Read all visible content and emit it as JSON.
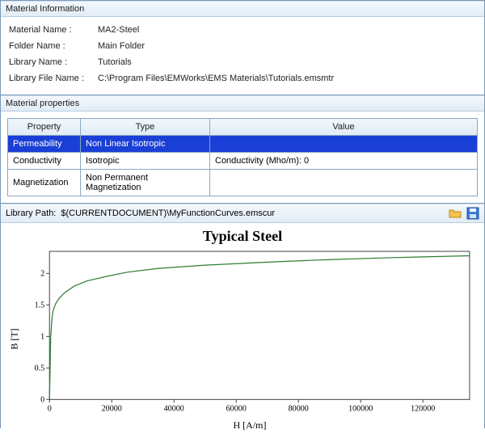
{
  "info_panel": {
    "title": "Material Information",
    "rows": [
      {
        "label": "Material Name :",
        "value": "MA2-Steel"
      },
      {
        "label": "Folder Name :",
        "value": "Main Folder"
      },
      {
        "label": "Library Name :",
        "value": "Tutorials"
      },
      {
        "label": "Library File Name :",
        "value": "C:\\Program Files\\EMWorks\\EMS Materials\\Tutorials.emsmtr"
      }
    ]
  },
  "props_panel": {
    "title": "Material properties",
    "columns": [
      "Property",
      "Type",
      "Value"
    ],
    "rows": [
      {
        "property": "Permeability",
        "type": "Non Linear Isotropic",
        "value": "",
        "selected": true
      },
      {
        "property": "Conductivity",
        "type": "Isotropic",
        "value": "Conductivity (Mho/m):  0",
        "selected": false
      },
      {
        "property": "Magnetization",
        "type": "Non Permanent Magnetization",
        "value": "",
        "selected": false
      }
    ]
  },
  "library_bar": {
    "label": "Library Path:",
    "value": "$(CURRENTDOCUMENT)\\MyFunctionCurves.emscur"
  },
  "chart": {
    "type": "line",
    "title": "Typical Steel",
    "xlabel": "H [A/m]",
    "ylabel": "B [T]",
    "xlim": [
      0,
      135000
    ],
    "ylim": [
      0,
      2.35
    ],
    "xticks": [
      0,
      20000,
      40000,
      60000,
      80000,
      100000,
      120000
    ],
    "yticks": [
      0,
      0.5,
      1,
      1.5,
      2
    ],
    "line_color": "#2e7d32",
    "line_width": 1.2,
    "axis_color": "#444444",
    "tick_fontsize": 10,
    "tick_font": "Times New Roman",
    "background_color": "#ffffff",
    "data": [
      [
        0,
        0
      ],
      [
        400,
        1.0
      ],
      [
        800,
        1.3
      ],
      [
        1200,
        1.42
      ],
      [
        2000,
        1.52
      ],
      [
        3000,
        1.6
      ],
      [
        5000,
        1.7
      ],
      [
        8000,
        1.8
      ],
      [
        12000,
        1.88
      ],
      [
        18000,
        1.95
      ],
      [
        25000,
        2.02
      ],
      [
        35000,
        2.08
      ],
      [
        50000,
        2.13
      ],
      [
        70000,
        2.18
      ],
      [
        90000,
        2.22
      ],
      [
        110000,
        2.25
      ],
      [
        135000,
        2.28
      ]
    ]
  }
}
